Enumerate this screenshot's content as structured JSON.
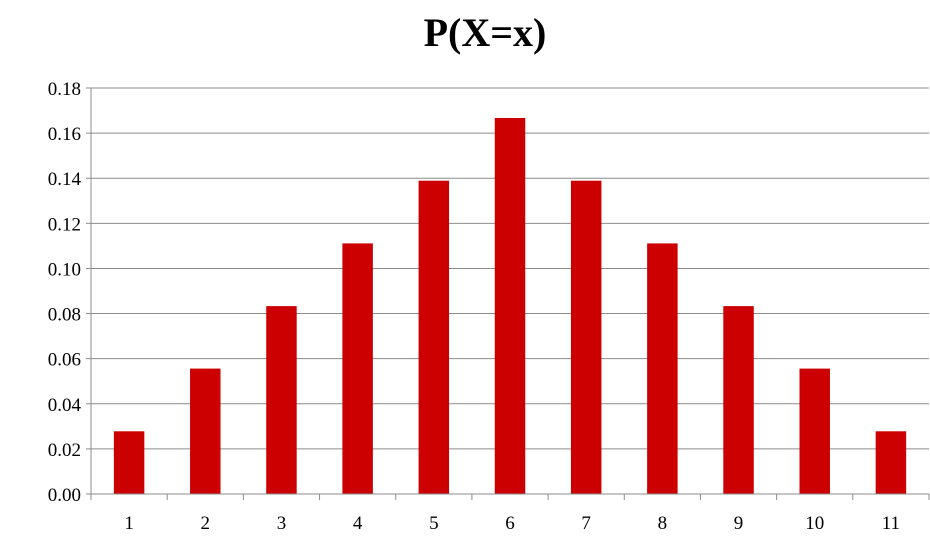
{
  "chart_data": {
    "type": "bar",
    "title": "P(X=x)",
    "xlabel": "",
    "ylabel": "",
    "categories": [
      "1",
      "2",
      "3",
      "4",
      "5",
      "6",
      "7",
      "8",
      "9",
      "10",
      "11"
    ],
    "values": [
      0.0278,
      0.0556,
      0.0833,
      0.1111,
      0.1389,
      0.1667,
      0.1389,
      0.1111,
      0.0833,
      0.0556,
      0.0278
    ],
    "ylim": [
      0,
      0.18
    ],
    "yticks": [
      "0.00",
      "0.02",
      "0.04",
      "0.06",
      "0.08",
      "0.10",
      "0.12",
      "0.14",
      "0.16",
      "0.18"
    ],
    "grid": true,
    "legend": "none",
    "bar_color": "#cc0000"
  }
}
